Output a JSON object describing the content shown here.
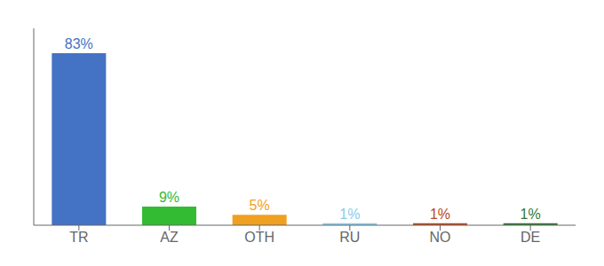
{
  "chart_data": {
    "type": "bar",
    "categories": [
      "TR",
      "AZ",
      "OTH",
      "RU",
      "NO",
      "DE"
    ],
    "values": [
      83,
      9,
      5,
      1,
      1,
      1
    ],
    "value_labels": [
      "83%",
      "9%",
      "5%",
      "1%",
      "1%",
      "1%"
    ],
    "colors": [
      "#4472c4",
      "#33bb33",
      "#f0a020",
      "#88ccee",
      "#b84820",
      "#337733"
    ],
    "ylim": [
      0,
      95
    ],
    "data_labels": true,
    "tick_labels": "x",
    "grid": false
  }
}
